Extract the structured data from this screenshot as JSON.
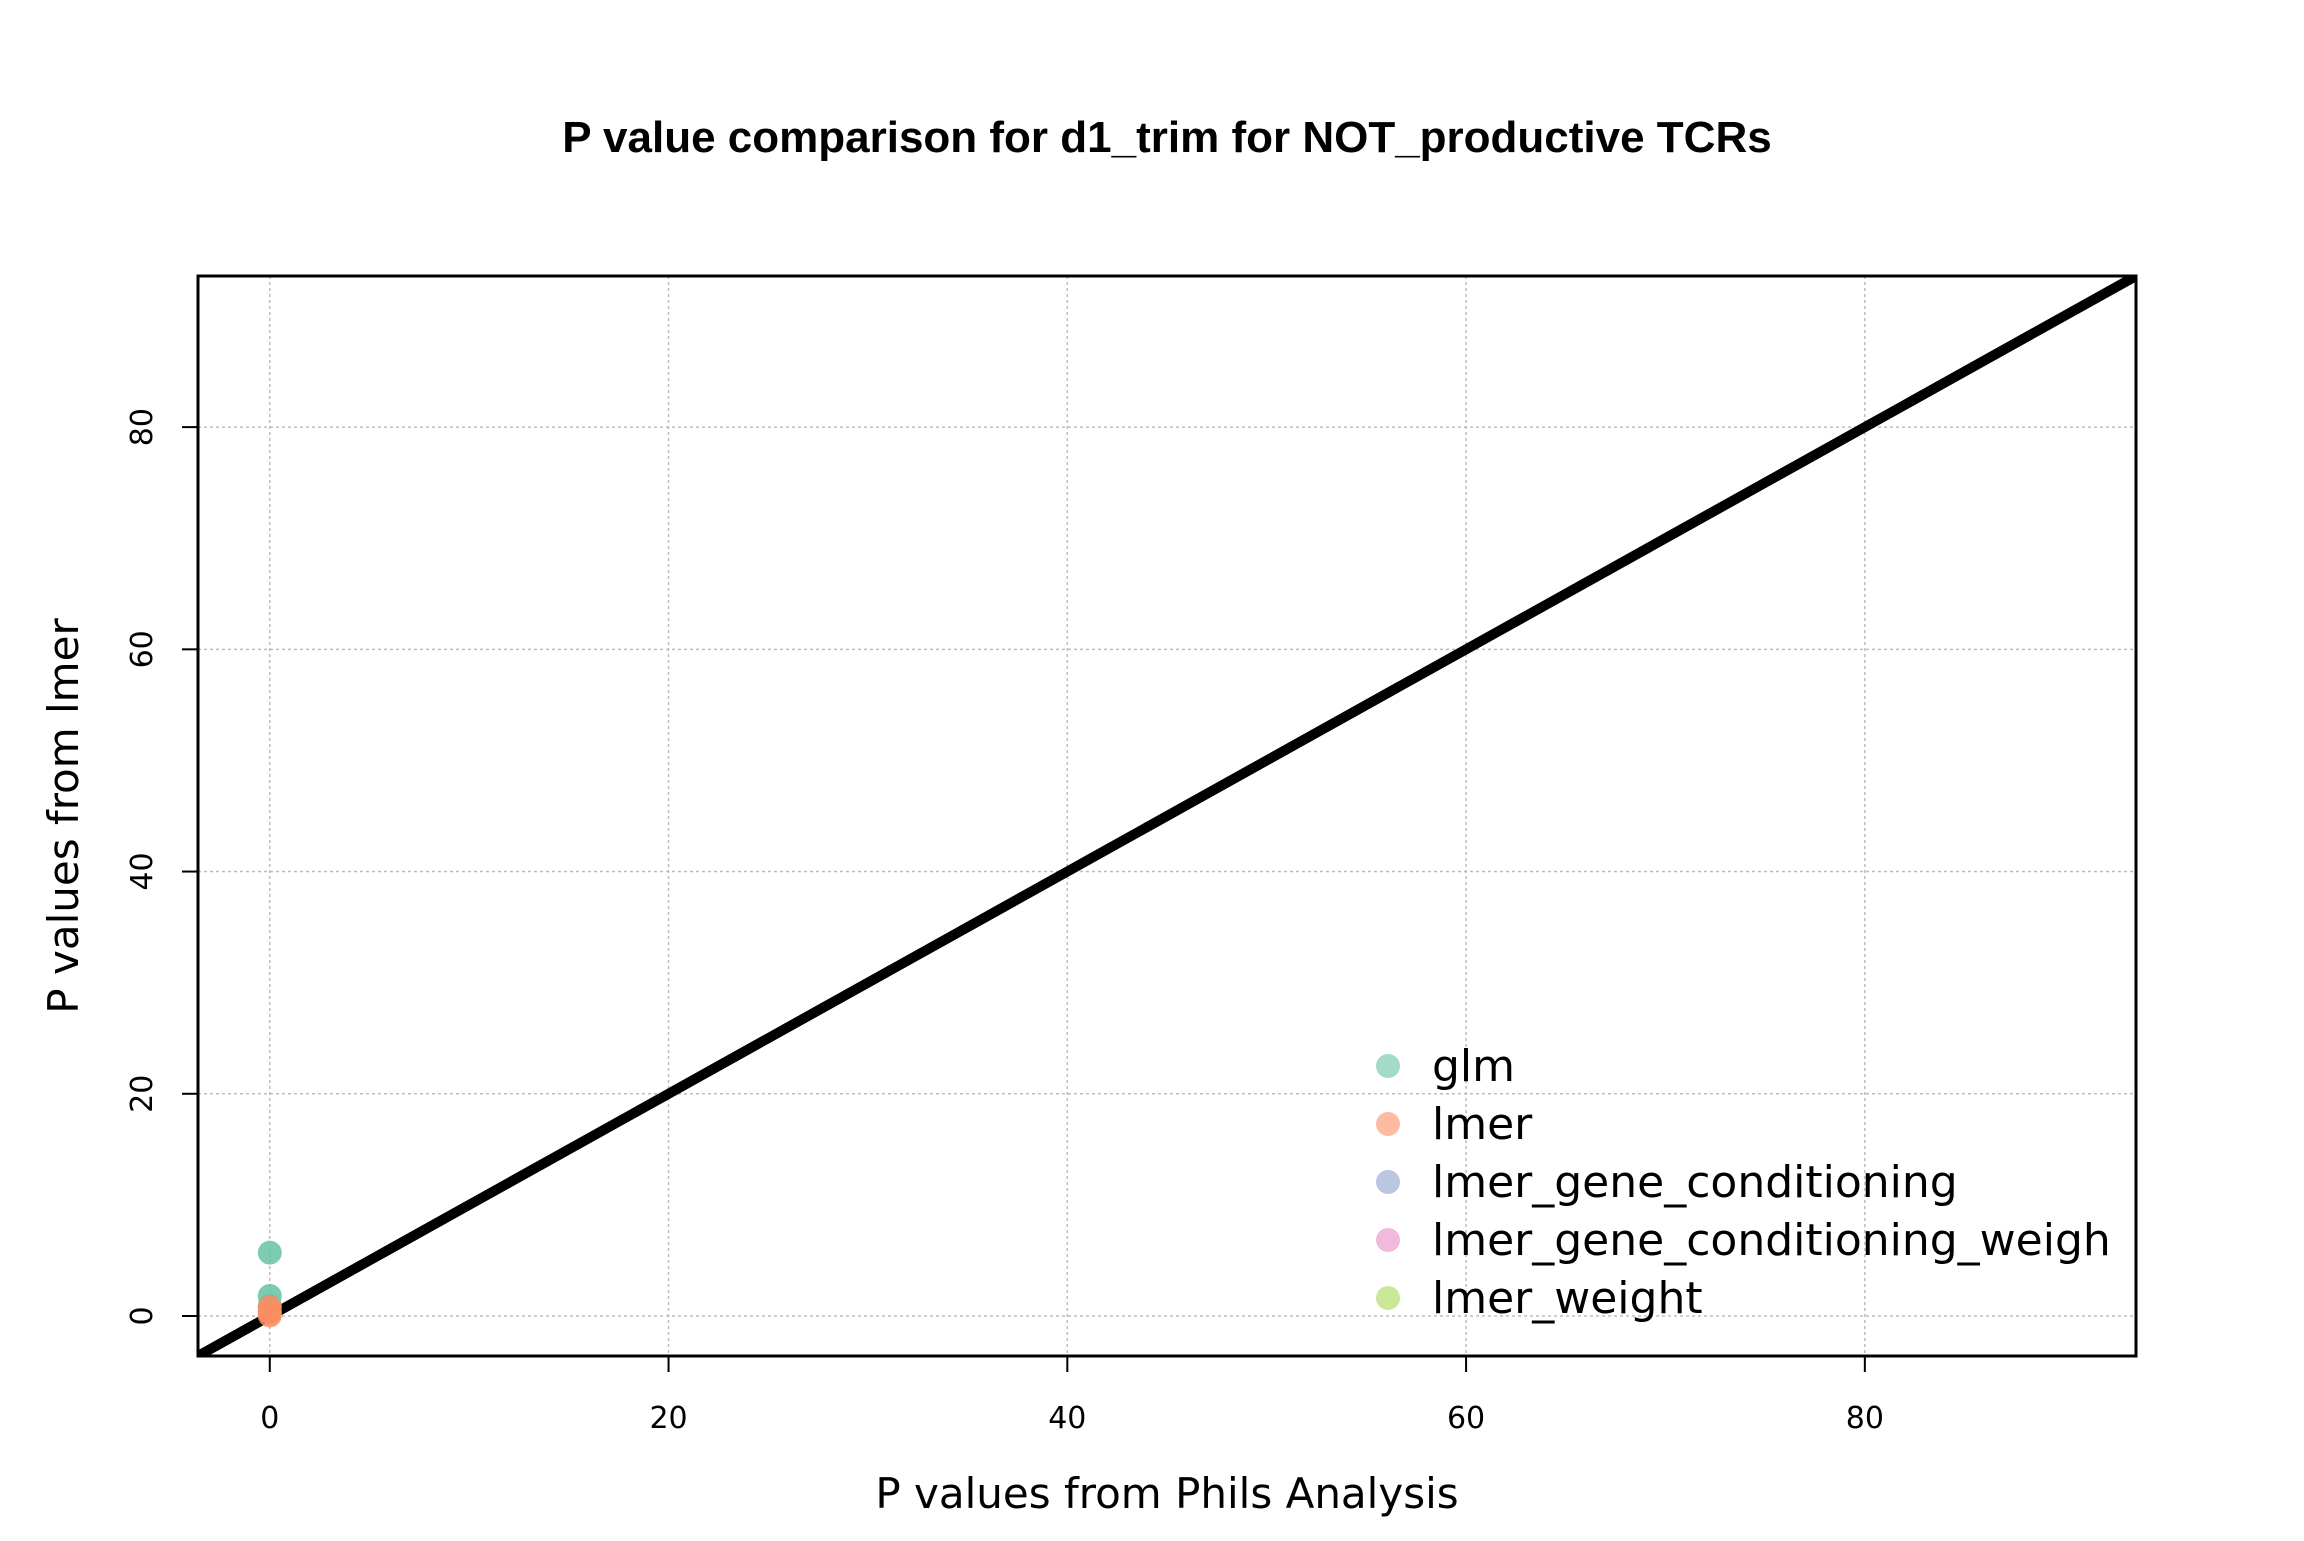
{
  "chart_data": {
    "type": "scatter",
    "title": "P value comparison for d1_trim for NOT_productive TCRs",
    "xlabel": "P values from Phils Analysis",
    "ylabel": "P values from lmer",
    "xlim": [
      -3.6,
      93.6
    ],
    "ylim": [
      -3.6,
      93.6
    ],
    "x_ticks": [
      0,
      20,
      40,
      60,
      80
    ],
    "y_ticks": [
      0,
      20,
      40,
      60,
      80
    ],
    "grid": true,
    "grid_color": "#bdbdbd",
    "reference_line": {
      "slope": 1,
      "intercept": 0,
      "color": "#000000"
    },
    "legend_position": "bottom-right",
    "series": [
      {
        "name": "glm",
        "color": "#66c2a5",
        "points": [
          [
            0,
            5.7
          ],
          [
            0,
            1.8
          ],
          [
            0,
            0.9
          ],
          [
            0,
            0.4
          ]
        ]
      },
      {
        "name": "lmer",
        "color": "#fc8d62",
        "points": [
          [
            0,
            0.8
          ],
          [
            0,
            0.3
          ],
          [
            0,
            0.05
          ]
        ]
      },
      {
        "name": "lmer_gene_conditioning",
        "color": "#8da0cb",
        "points": []
      },
      {
        "name": "lmer_gene_conditioning_weigh",
        "color": "#e78ac3",
        "points": []
      },
      {
        "name": "lmer_weight",
        "color": "#a6d854",
        "points": []
      }
    ]
  }
}
